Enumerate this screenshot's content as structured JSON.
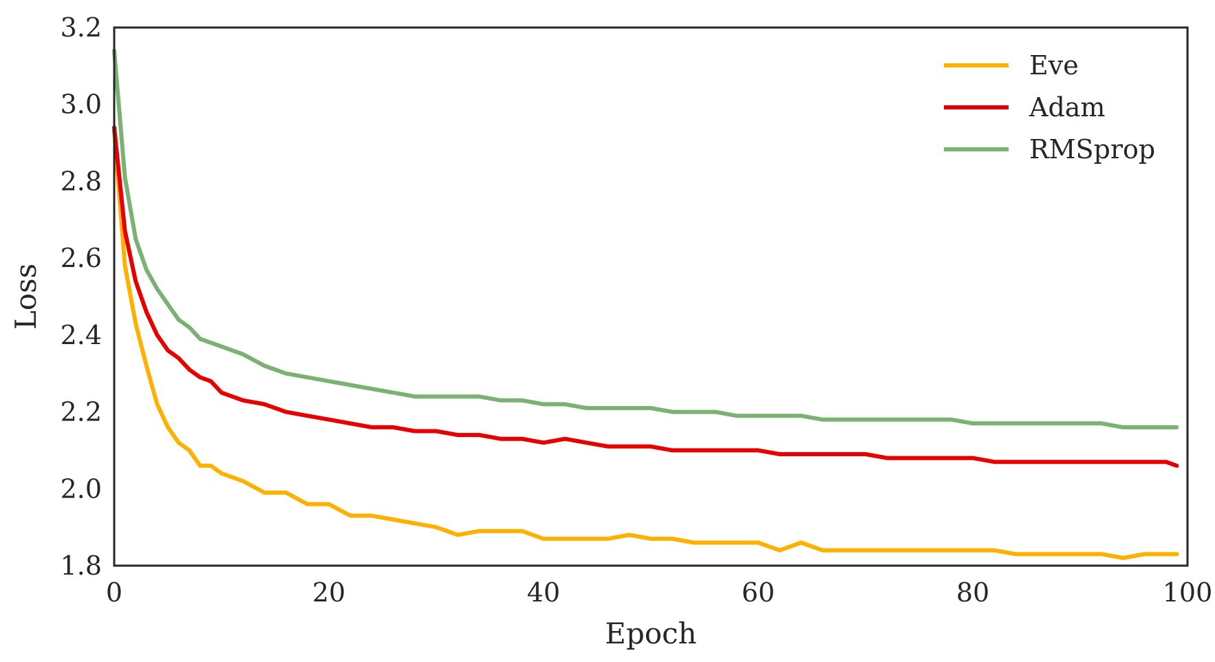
{
  "chart_data": {
    "type": "line",
    "title": "",
    "xlabel": "Epoch",
    "ylabel": "Loss",
    "xlim": [
      0,
      100
    ],
    "ylim": [
      1.8,
      3.2
    ],
    "xticks": [
      "0",
      "20",
      "40",
      "60",
      "80",
      "100"
    ],
    "yticks": [
      "1.8",
      "2.0",
      "2.2",
      "2.4",
      "2.6",
      "2.8",
      "3.0",
      "3.2"
    ],
    "grid": false,
    "legend_position": "top-right",
    "series": [
      {
        "name": "Eve",
        "color": "#FFB000",
        "x": [
          0,
          1,
          2,
          3,
          4,
          5,
          6,
          7,
          8,
          9,
          10,
          12,
          14,
          16,
          18,
          20,
          22,
          24,
          26,
          28,
          30,
          32,
          34,
          36,
          38,
          40,
          42,
          44,
          46,
          48,
          50,
          52,
          54,
          56,
          58,
          60,
          62,
          64,
          66,
          68,
          70,
          72,
          74,
          76,
          78,
          80,
          82,
          84,
          86,
          88,
          90,
          92,
          94,
          96,
          98,
          99
        ],
        "y": [
          2.93,
          2.58,
          2.43,
          2.32,
          2.22,
          2.16,
          2.12,
          2.1,
          2.06,
          2.06,
          2.04,
          2.02,
          1.99,
          1.99,
          1.96,
          1.96,
          1.93,
          1.93,
          1.92,
          1.91,
          1.9,
          1.88,
          1.89,
          1.89,
          1.89,
          1.87,
          1.87,
          1.87,
          1.87,
          1.88,
          1.87,
          1.87,
          1.86,
          1.86,
          1.86,
          1.86,
          1.84,
          1.86,
          1.84,
          1.84,
          1.84,
          1.84,
          1.84,
          1.84,
          1.84,
          1.84,
          1.84,
          1.83,
          1.83,
          1.83,
          1.83,
          1.83,
          1.82,
          1.83,
          1.83,
          1.83
        ]
      },
      {
        "name": "Adam",
        "color": "#E60000",
        "x": [
          0,
          1,
          2,
          3,
          4,
          5,
          6,
          7,
          8,
          9,
          10,
          12,
          14,
          16,
          18,
          20,
          22,
          24,
          26,
          28,
          30,
          32,
          34,
          36,
          38,
          40,
          42,
          44,
          46,
          48,
          50,
          52,
          54,
          56,
          58,
          60,
          62,
          64,
          66,
          68,
          70,
          72,
          74,
          76,
          78,
          80,
          82,
          84,
          86,
          88,
          90,
          92,
          94,
          96,
          98,
          99
        ],
        "y": [
          2.94,
          2.67,
          2.54,
          2.46,
          2.4,
          2.36,
          2.34,
          2.31,
          2.29,
          2.28,
          2.25,
          2.23,
          2.22,
          2.2,
          2.19,
          2.18,
          2.17,
          2.16,
          2.16,
          2.15,
          2.15,
          2.14,
          2.14,
          2.13,
          2.13,
          2.12,
          2.13,
          2.12,
          2.11,
          2.11,
          2.11,
          2.1,
          2.1,
          2.1,
          2.1,
          2.1,
          2.09,
          2.09,
          2.09,
          2.09,
          2.09,
          2.08,
          2.08,
          2.08,
          2.08,
          2.08,
          2.07,
          2.07,
          2.07,
          2.07,
          2.07,
          2.07,
          2.07,
          2.07,
          2.07,
          2.06
        ]
      },
      {
        "name": "RMSprop",
        "color": "#7BB274",
        "x": [
          0,
          1,
          2,
          3,
          4,
          5,
          6,
          7,
          8,
          9,
          10,
          12,
          14,
          16,
          18,
          20,
          22,
          24,
          26,
          28,
          30,
          32,
          34,
          36,
          38,
          40,
          42,
          44,
          46,
          48,
          50,
          52,
          54,
          56,
          58,
          60,
          62,
          64,
          66,
          68,
          70,
          72,
          74,
          76,
          78,
          80,
          82,
          84,
          86,
          88,
          90,
          92,
          94,
          96,
          98,
          99
        ],
        "y": [
          3.14,
          2.81,
          2.65,
          2.57,
          2.52,
          2.48,
          2.44,
          2.42,
          2.39,
          2.38,
          2.37,
          2.35,
          2.32,
          2.3,
          2.29,
          2.28,
          2.27,
          2.26,
          2.25,
          2.24,
          2.24,
          2.24,
          2.24,
          2.23,
          2.23,
          2.22,
          2.22,
          2.21,
          2.21,
          2.21,
          2.21,
          2.2,
          2.2,
          2.2,
          2.19,
          2.19,
          2.19,
          2.19,
          2.18,
          2.18,
          2.18,
          2.18,
          2.18,
          2.18,
          2.18,
          2.17,
          2.17,
          2.17,
          2.17,
          2.17,
          2.17,
          2.17,
          2.16,
          2.16,
          2.16,
          2.16
        ]
      }
    ]
  }
}
